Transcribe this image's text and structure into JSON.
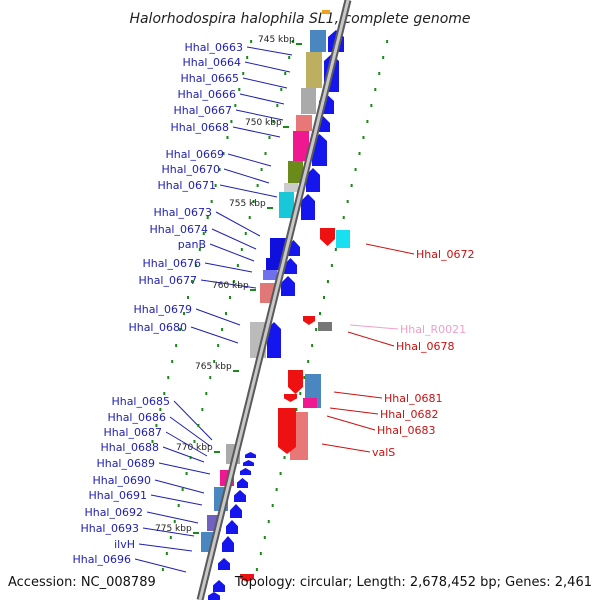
{
  "title": "Halorhodospira halophila SL1, complete genome",
  "accession_text": "Accession: NC_008789",
  "summary_text": "Topology: circular; Length: 2,678,452 bp; Genes: 2,461",
  "colors": {
    "left_label": "#1f1fb0",
    "right_label": "#cc1111",
    "rna_label": "#f0a0c8",
    "forward_arrow": "#1515ee",
    "reverse_arrow": "#ee1111",
    "backbone": "#8c8c8c",
    "tick": "#1a8a1a"
  },
  "kbp_marks": [
    "745 kbp",
    "750 kbp",
    "755 kbp",
    "760 kbp",
    "765 kbp",
    "770 kbp",
    "775 kbp"
  ],
  "left_genes": [
    "Hhal_0663",
    "Hhal_0664",
    "Hhal_0665",
    "Hhal_0666",
    "Hhal_0667",
    "Hhal_0668",
    "Hhal_0669",
    "Hhal_0670",
    "Hhal_0671",
    "Hhal_0673",
    "Hhal_0674",
    "panB",
    "Hhal_0676",
    "Hhal_0677",
    "Hhal_0679",
    "Hhal_0680",
    "Hhal_0685",
    "Hhal_0686",
    "Hhal_0687",
    "Hhal_0688",
    "Hhal_0689",
    "Hhal_0690",
    "Hhal_0691",
    "Hhal_0692",
    "Hhal_0693",
    "ilvH",
    "Hhal_0696"
  ],
  "right_genes": [
    "Hhal_0672",
    "Hhal_R0021",
    "Hhal_0678",
    "Hhal_0681",
    "Hhal_0682",
    "Hhal_0683",
    "valS"
  ]
}
